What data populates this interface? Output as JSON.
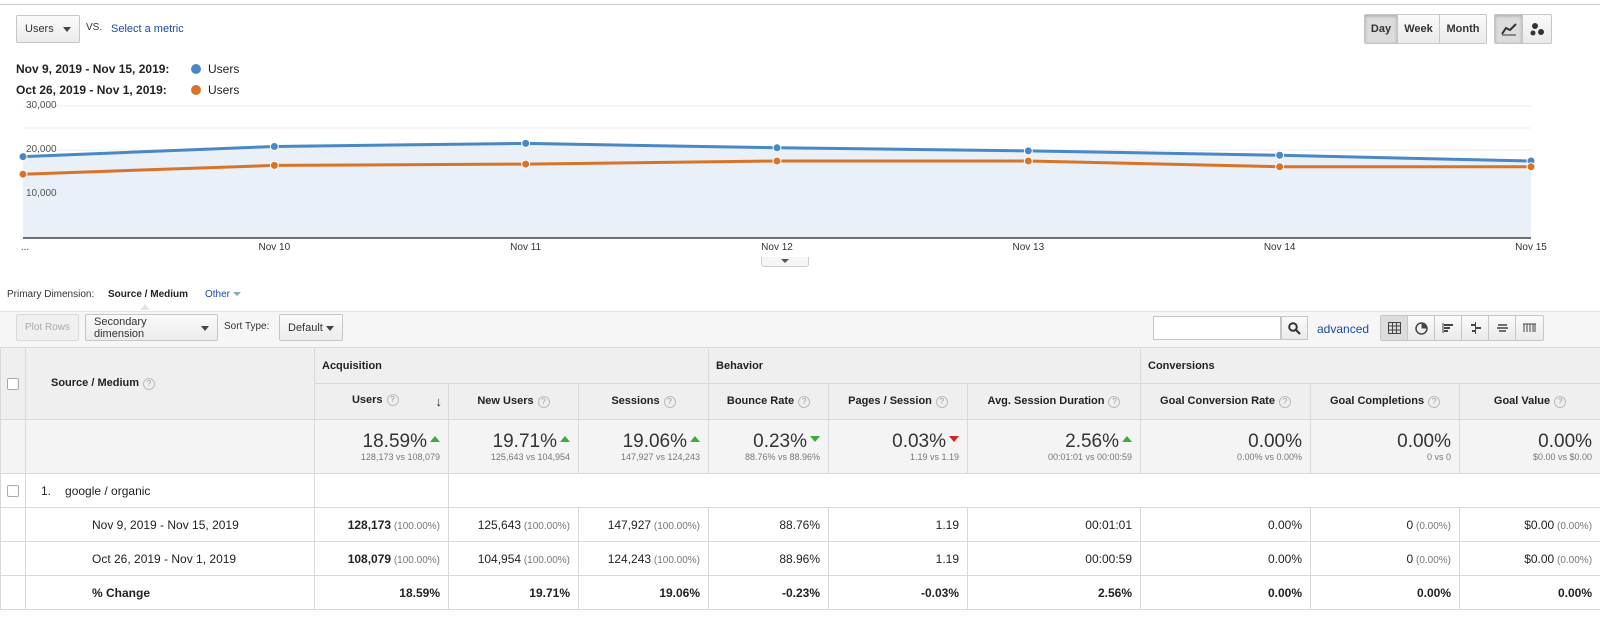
{
  "chart_controls": {
    "metric_select": "Users",
    "vs_label": "VS.",
    "select_metric_link": "Select a metric",
    "granularity": [
      "Day",
      "Week",
      "Month"
    ],
    "granularity_selected": "Day",
    "chart_icons": [
      "line-chart-icon",
      "motion-chart-icon"
    ]
  },
  "legend": [
    {
      "range": "Nov 9, 2019 - Nov 15, 2019:",
      "series": "Users",
      "color": "#4a87c5"
    },
    {
      "range": "Oct 26, 2019 - Nov 1, 2019:",
      "series": "Users",
      "color": "#d8742a"
    }
  ],
  "chart_data": {
    "type": "area",
    "categories": [
      "...",
      "Nov 10",
      "Nov 11",
      "Nov 12",
      "Nov 13",
      "Nov 14",
      "Nov 15"
    ],
    "y_ticks": [
      "30,000",
      "20,000",
      "10,000"
    ],
    "ylim": [
      0,
      30000
    ],
    "grid": true,
    "legend": "top-left",
    "series": [
      {
        "name": "Users",
        "color": "#4a87c5",
        "fill": "#e9f0f8",
        "values": [
          18500,
          20800,
          21500,
          20500,
          19800,
          18800,
          17500
        ]
      },
      {
        "name": "Users",
        "color": "#d8742a",
        "values": [
          14500,
          16500,
          16800,
          17500,
          17500,
          16200,
          16200
        ]
      }
    ]
  },
  "primary_dimension": {
    "label": "Primary Dimension:",
    "selected": "Source / Medium",
    "other": "Other"
  },
  "toolbar": {
    "plot_rows": "Plot Rows",
    "secondary_dimension": "Secondary dimension",
    "sort_type_label": "Sort Type:",
    "sort_type_value": "Default",
    "search_placeholder": "",
    "advanced": "advanced",
    "view_icons": [
      "table-view-icon",
      "pie-view-icon",
      "performance-view-icon",
      "comparison-view-icon",
      "term-cloud-icon",
      "pivot-view-icon"
    ]
  },
  "table": {
    "dimension_header": "Source / Medium",
    "groups": [
      "Acquisition",
      "Behavior",
      "Conversions"
    ],
    "columns": [
      "Users",
      "New Users",
      "Sessions",
      "Bounce Rate",
      "Pages / Session",
      "Avg. Session Duration",
      "Goal Conversion Rate",
      "Goal Completions",
      "Goal Value"
    ],
    "totals": [
      {
        "big": "18.59%",
        "dir": "up",
        "small": "128,173 vs 108,079"
      },
      {
        "big": "19.71%",
        "dir": "up",
        "small": "125,643 vs 104,954"
      },
      {
        "big": "19.06%",
        "dir": "up",
        "small": "147,927 vs 124,243"
      },
      {
        "big": "0.23%",
        "dir": "down",
        "small": "88.76% vs 88.96%"
      },
      {
        "big": "0.03%",
        "dir": "down-red",
        "small": "1.19 vs 1.19"
      },
      {
        "big": "2.56%",
        "dir": "up",
        "small": "00:01:01 vs 00:00:59"
      },
      {
        "big": "0.00%",
        "dir": "",
        "small": "0.00% vs 0.00%"
      },
      {
        "big": "0.00%",
        "dir": "",
        "small": "0 vs 0"
      },
      {
        "big": "0.00%",
        "dir": "",
        "small": "$0.00 vs $0.00"
      }
    ],
    "row": {
      "index": "1.",
      "name": "google / organic",
      "periods": [
        {
          "label": "Nov 9, 2019 - Nov 15, 2019",
          "values": [
            [
              "128,173",
              "(100.00%)"
            ],
            [
              "125,643",
              "(100.00%)"
            ],
            [
              "147,927",
              "(100.00%)"
            ],
            [
              "88.76%",
              ""
            ],
            [
              "1.19",
              ""
            ],
            [
              "00:01:01",
              ""
            ],
            [
              "0.00%",
              ""
            ],
            [
              "0",
              "(0.00%)"
            ],
            [
              "$0.00",
              "(0.00%)"
            ]
          ]
        },
        {
          "label": "Oct 26, 2019 - Nov 1, 2019",
          "values": [
            [
              "108,079",
              "(100.00%)"
            ],
            [
              "104,954",
              "(100.00%)"
            ],
            [
              "124,243",
              "(100.00%)"
            ],
            [
              "88.96%",
              ""
            ],
            [
              "1.19",
              ""
            ],
            [
              "00:00:59",
              ""
            ],
            [
              "0.00%",
              ""
            ],
            [
              "0",
              "(0.00%)"
            ],
            [
              "$0.00",
              "(0.00%)"
            ]
          ]
        },
        {
          "label": "% Change",
          "values": [
            [
              "18.59%",
              ""
            ],
            [
              "19.71%",
              ""
            ],
            [
              "19.06%",
              ""
            ],
            [
              "-0.23%",
              ""
            ],
            [
              "-0.03%",
              ""
            ],
            [
              "2.56%",
              ""
            ],
            [
              "0.00%",
              ""
            ],
            [
              "0.00%",
              ""
            ],
            [
              "0.00%",
              ""
            ]
          ]
        }
      ]
    }
  }
}
